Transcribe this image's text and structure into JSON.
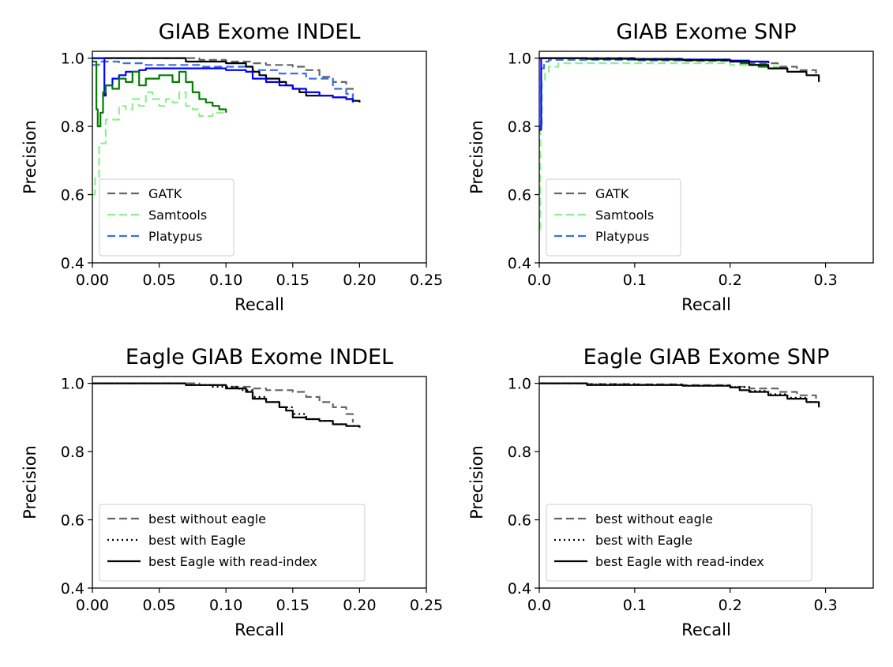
{
  "chart_data": [
    {
      "type": "line",
      "title": "GIAB Exome INDEL",
      "xlabel": "Recall",
      "ylabel": "Precision",
      "xlim": [
        0.0,
        0.25
      ],
      "ylim": [
        0.4,
        1.02
      ],
      "xticks": [
        "0.00",
        "0.05",
        "0.10",
        "0.15",
        "0.20",
        "0.25"
      ],
      "xtick_values": [
        0.0,
        0.05,
        0.1,
        0.15,
        0.2,
        0.25
      ],
      "yticks": [
        "0.4",
        "0.6",
        "0.8",
        "1.0"
      ],
      "ytick_values": [
        0.4,
        0.6,
        0.8,
        1.0
      ],
      "grid": false,
      "legend": {
        "location": "lower-left",
        "entries": [
          {
            "label": "GATK",
            "color": "#666666",
            "style": "dashed"
          },
          {
            "label": "Samtools",
            "color": "#90ee90",
            "style": "dashed"
          },
          {
            "label": "Platypus",
            "color": "#3c6ee8",
            "style": "dashed"
          }
        ]
      },
      "series": [
        {
          "color": "#666666",
          "style": "dashed",
          "x": [
            0.0,
            0.04,
            0.07,
            0.08,
            0.1,
            0.12,
            0.13,
            0.15,
            0.16,
            0.17,
            0.18,
            0.19,
            0.195
          ],
          "y": [
            1.0,
            1.0,
            1.0,
            0.995,
            0.99,
            0.985,
            0.98,
            0.975,
            0.965,
            0.945,
            0.93,
            0.91,
            0.88
          ]
        },
        {
          "color": "#90ee90",
          "style": "dashed",
          "x": [
            0.0,
            0.002,
            0.005,
            0.01,
            0.02,
            0.025,
            0.03,
            0.035,
            0.04,
            0.045,
            0.05,
            0.055,
            0.06,
            0.065,
            0.07,
            0.075,
            0.08,
            0.085,
            0.09,
            0.095,
            0.1
          ],
          "y": [
            0.6,
            0.65,
            0.75,
            0.82,
            0.86,
            0.85,
            0.88,
            0.86,
            0.9,
            0.88,
            0.86,
            0.88,
            0.87,
            0.9,
            0.86,
            0.85,
            0.83,
            0.83,
            0.84,
            0.84,
            0.85
          ]
        },
        {
          "color": "#3c6ee8",
          "style": "dashed",
          "x": [
            0.0,
            0.005,
            0.01,
            0.02,
            0.04,
            0.06,
            0.08,
            0.1,
            0.12,
            0.14,
            0.16,
            0.18,
            0.19,
            0.195
          ],
          "y": [
            0.98,
            0.99,
            0.99,
            0.985,
            0.98,
            0.98,
            0.975,
            0.975,
            0.965,
            0.955,
            0.94,
            0.91,
            0.895,
            0.87
          ]
        },
        {
          "color": "#000000",
          "style": "solid",
          "x": [
            0.0,
            0.06,
            0.07,
            0.1,
            0.115,
            0.12,
            0.125,
            0.13,
            0.14,
            0.145,
            0.15,
            0.155,
            0.16,
            0.17,
            0.18,
            0.19,
            0.195,
            0.2
          ],
          "y": [
            1.0,
            1.0,
            0.99,
            0.985,
            0.975,
            0.96,
            0.95,
            0.94,
            0.93,
            0.92,
            0.91,
            0.9,
            0.89,
            0.89,
            0.885,
            0.88,
            0.875,
            0.87
          ]
        },
        {
          "color": "#0000ff",
          "style": "solid",
          "x": [
            0.0,
            0.005,
            0.008,
            0.009,
            0.01,
            0.015,
            0.02,
            0.025,
            0.03,
            0.035,
            0.04,
            0.05,
            0.06,
            0.08,
            0.1,
            0.115,
            0.12,
            0.13,
            0.14,
            0.15,
            0.16,
            0.17,
            0.18,
            0.19,
            0.195
          ],
          "y": [
            1.0,
            1.0,
            1.0,
            0.89,
            0.92,
            0.94,
            0.95,
            0.96,
            0.96,
            0.965,
            0.97,
            0.97,
            0.97,
            0.97,
            0.965,
            0.96,
            0.94,
            0.93,
            0.92,
            0.91,
            0.9,
            0.89,
            0.885,
            0.88,
            0.87
          ]
        },
        {
          "color": "#007f00",
          "style": "solid",
          "x": [
            0.0,
            0.002,
            0.003,
            0.004,
            0.006,
            0.008,
            0.01,
            0.015,
            0.02,
            0.025,
            0.03,
            0.035,
            0.04,
            0.05,
            0.06,
            0.065,
            0.07,
            0.075,
            0.08,
            0.085,
            0.09,
            0.095,
            0.1
          ],
          "y": [
            0.99,
            0.99,
            0.85,
            0.8,
            0.84,
            0.9,
            0.92,
            0.91,
            0.94,
            0.93,
            0.96,
            0.92,
            0.94,
            0.95,
            0.93,
            0.96,
            0.93,
            0.9,
            0.88,
            0.87,
            0.86,
            0.85,
            0.84
          ]
        }
      ]
    },
    {
      "type": "line",
      "title": "GIAB Exome SNP",
      "xlabel": "Recall",
      "ylabel": "Precision",
      "xlim": [
        0.0,
        0.35
      ],
      "ylim": [
        0.4,
        1.02
      ],
      "xticks": [
        "0.0",
        "0.1",
        "0.2",
        "0.3"
      ],
      "xtick_values": [
        0.0,
        0.1,
        0.2,
        0.3
      ],
      "yticks": [
        "0.4",
        "0.6",
        "0.8",
        "1.0"
      ],
      "ytick_values": [
        0.4,
        0.6,
        0.8,
        1.0
      ],
      "grid": false,
      "legend": {
        "location": "lower-left",
        "entries": [
          {
            "label": "GATK",
            "color": "#666666",
            "style": "dashed"
          },
          {
            "label": "Samtools",
            "color": "#90ee90",
            "style": "dashed"
          },
          {
            "label": "Platypus",
            "color": "#3c6ee8",
            "style": "dashed"
          }
        ]
      },
      "series": [
        {
          "color": "#90ee90",
          "style": "dashed",
          "x": [
            0.0,
            0.001,
            0.003,
            0.006,
            0.01,
            0.02,
            0.05,
            0.1,
            0.15,
            0.2,
            0.23,
            0.25
          ],
          "y": [
            0.5,
            0.8,
            0.93,
            0.96,
            0.975,
            0.985,
            0.985,
            0.985,
            0.985,
            0.98,
            0.975,
            0.97
          ]
        },
        {
          "color": "#3c6ee8",
          "style": "dashed",
          "x": [
            0.0,
            0.002,
            0.005,
            0.01,
            0.05,
            0.1,
            0.15,
            0.2,
            0.24
          ],
          "y": [
            0.8,
            0.97,
            0.99,
            0.995,
            0.995,
            0.993,
            0.992,
            0.99,
            0.985
          ]
        },
        {
          "color": "#0000ff",
          "style": "solid",
          "x": [
            0.0,
            0.002,
            0.005,
            0.01,
            0.05,
            0.1,
            0.15,
            0.2,
            0.22,
            0.24
          ],
          "y": [
            0.79,
            1.0,
            1.0,
            1.0,
            1.0,
            0.998,
            0.996,
            0.993,
            0.99,
            0.985
          ]
        },
        {
          "color": "#007f00",
          "style": "solid",
          "x": [
            0.21,
            0.22,
            0.23,
            0.24,
            0.25,
            0.26
          ],
          "y": [
            0.985,
            0.98,
            0.975,
            0.97,
            0.97,
            0.965
          ]
        },
        {
          "color": "#666666",
          "style": "dashed",
          "x": [
            0.0,
            0.05,
            0.1,
            0.15,
            0.2,
            0.22,
            0.25,
            0.27,
            0.29
          ],
          "y": [
            1.0,
            1.0,
            0.998,
            0.995,
            0.99,
            0.985,
            0.975,
            0.965,
            0.945
          ]
        },
        {
          "color": "#000000",
          "style": "solid",
          "x": [
            0.0,
            0.05,
            0.1,
            0.15,
            0.2,
            0.22,
            0.24,
            0.26,
            0.28,
            0.293
          ],
          "y": [
            1.0,
            0.998,
            0.996,
            0.994,
            0.99,
            0.98,
            0.97,
            0.96,
            0.95,
            0.93
          ]
        }
      ]
    },
    {
      "type": "line",
      "title": "Eagle GIAB Exome INDEL",
      "xlabel": "Recall",
      "ylabel": "Precision",
      "xlim": [
        0.0,
        0.25
      ],
      "ylim": [
        0.4,
        1.02
      ],
      "xticks": [
        "0.00",
        "0.05",
        "0.10",
        "0.15",
        "0.20",
        "0.25"
      ],
      "xtick_values": [
        0.0,
        0.05,
        0.1,
        0.15,
        0.2,
        0.25
      ],
      "yticks": [
        "0.4",
        "0.6",
        "0.8",
        "1.0"
      ],
      "ytick_values": [
        0.4,
        0.6,
        0.8,
        1.0
      ],
      "grid": false,
      "legend": {
        "location": "lower-left",
        "entries": [
          {
            "label": "best without eagle",
            "color": "#666666",
            "style": "dashed"
          },
          {
            "label": "best with Eagle",
            "color": "#000000",
            "style": "dotted"
          },
          {
            "label": "best Eagle with read-index",
            "color": "#000000",
            "style": "solid"
          }
        ]
      },
      "series": [
        {
          "color": "#666666",
          "style": "dashed",
          "x": [
            0.0,
            0.06,
            0.08,
            0.1,
            0.12,
            0.13,
            0.15,
            0.16,
            0.17,
            0.18,
            0.19,
            0.195
          ],
          "y": [
            1.0,
            1.0,
            0.995,
            0.99,
            0.985,
            0.98,
            0.975,
            0.96,
            0.945,
            0.93,
            0.91,
            0.885
          ]
        },
        {
          "color": "#000000",
          "style": "dotted",
          "x": [
            0.0,
            0.06,
            0.07,
            0.09,
            0.11,
            0.12,
            0.13,
            0.14,
            0.15,
            0.16,
            0.17,
            0.18,
            0.19,
            0.2
          ],
          "y": [
            1.0,
            1.0,
            0.995,
            0.99,
            0.98,
            0.96,
            0.945,
            0.93,
            0.91,
            0.895,
            0.89,
            0.88,
            0.875,
            0.87
          ]
        },
        {
          "color": "#000000",
          "style": "solid",
          "x": [
            0.0,
            0.065,
            0.07,
            0.1,
            0.115,
            0.12,
            0.13,
            0.14,
            0.145,
            0.15,
            0.16,
            0.17,
            0.18,
            0.19,
            0.2
          ],
          "y": [
            1.0,
            1.0,
            0.995,
            0.985,
            0.975,
            0.955,
            0.945,
            0.93,
            0.92,
            0.9,
            0.895,
            0.89,
            0.88,
            0.875,
            0.87
          ]
        }
      ]
    },
    {
      "type": "line",
      "title": "Eagle GIAB Exome SNP",
      "xlabel": "Recall",
      "ylabel": "Precision",
      "xlim": [
        0.0,
        0.35
      ],
      "ylim": [
        0.4,
        1.02
      ],
      "xticks": [
        "0.0",
        "0.1",
        "0.2",
        "0.3"
      ],
      "xtick_values": [
        0.0,
        0.1,
        0.2,
        0.3
      ],
      "yticks": [
        "0.4",
        "0.6",
        "0.8",
        "1.0"
      ],
      "ytick_values": [
        0.4,
        0.6,
        0.8,
        1.0
      ],
      "grid": false,
      "legend": {
        "location": "lower-left",
        "entries": [
          {
            "label": "best without eagle",
            "color": "#666666",
            "style": "dashed"
          },
          {
            "label": "best with Eagle",
            "color": "#000000",
            "style": "dotted"
          },
          {
            "label": "best Eagle with read-index",
            "color": "#000000",
            "style": "solid"
          }
        ]
      },
      "series": [
        {
          "color": "#666666",
          "style": "dashed",
          "x": [
            0.0,
            0.05,
            0.1,
            0.15,
            0.2,
            0.22,
            0.25,
            0.27,
            0.29
          ],
          "y": [
            1.0,
            0.998,
            0.997,
            0.995,
            0.99,
            0.985,
            0.975,
            0.965,
            0.945
          ]
        },
        {
          "color": "#000000",
          "style": "dotted",
          "x": [
            0.0,
            0.05,
            0.1,
            0.15,
            0.2,
            0.22,
            0.24,
            0.26,
            0.28,
            0.293
          ],
          "y": [
            1.0,
            0.997,
            0.996,
            0.993,
            0.989,
            0.978,
            0.968,
            0.958,
            0.945,
            0.93
          ]
        },
        {
          "color": "#000000",
          "style": "solid",
          "x": [
            0.0,
            0.04,
            0.05,
            0.1,
            0.15,
            0.2,
            0.21,
            0.22,
            0.24,
            0.26,
            0.28,
            0.293
          ],
          "y": [
            1.0,
            1.0,
            0.995,
            0.995,
            0.993,
            0.988,
            0.98,
            0.975,
            0.965,
            0.955,
            0.945,
            0.93
          ]
        }
      ]
    }
  ]
}
